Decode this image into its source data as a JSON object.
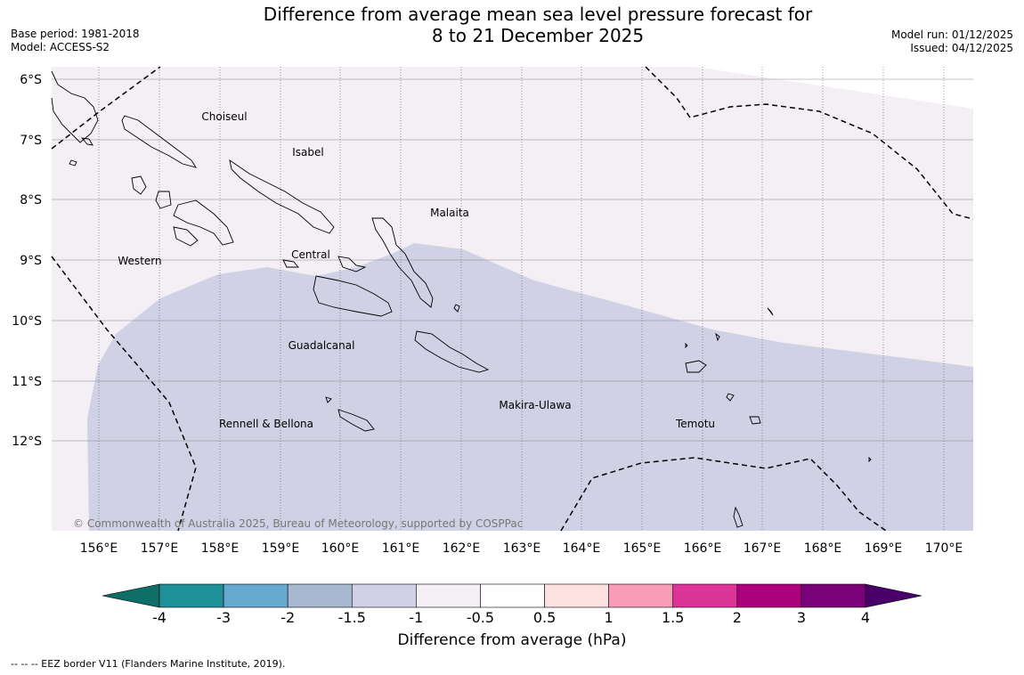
{
  "header": {
    "title_line1": "Difference from average mean sea level pressure forecast for",
    "title_line2": "8 to 21 December 2025",
    "base_period": "Base period: 1981-2018",
    "model": "Model: ACCESS-S2",
    "model_run": "Model run: 01/12/2025",
    "issued": "Issued: 04/12/2025"
  },
  "map": {
    "lat_labels": [
      "6°S",
      "7°S",
      "8°S",
      "9°S",
      "10°S",
      "11°S",
      "12°S"
    ],
    "lon_labels": [
      "156°E",
      "157°E",
      "158°E",
      "159°E",
      "160°E",
      "161°E",
      "162°E",
      "163°E",
      "164°E",
      "165°E",
      "166°E",
      "167°E",
      "168°E",
      "169°E",
      "170°E"
    ],
    "regions": {
      "choiseul": "Choiseul",
      "isabel": "Isabel",
      "malaita": "Malaita",
      "western": "Western",
      "central": "Central",
      "guadalcanal": "Guadalcanal",
      "makira_ulawa": "Makira-Ulawa",
      "temotu": "Temotu",
      "rennell_bellona": "Rennell & Bellona"
    },
    "copyright": "© Commonwealth of Australia 2025, Bureau of Meteorology, supported by COSPPac",
    "anomaly_fill_colors": {
      "between_-1.5_and_-1": "#d0d1e5",
      "between_-1_and_-0.5": "#f4eef5"
    }
  },
  "colorbar": {
    "ticks": [
      "-4",
      "-3",
      "-2",
      "-1.5",
      "-1",
      "-0.5",
      "0.5",
      "1",
      "1.5",
      "2",
      "3",
      "4"
    ],
    "colors": [
      "#0e6f68",
      "#1e9198",
      "#67a9cf",
      "#a9b8d1",
      "#d0d1e5",
      "#f4eef5",
      "#ffffff",
      "#fde0e0",
      "#f89db9",
      "#dd3497",
      "#ae017e",
      "#7a0177",
      "#49006a"
    ],
    "label": "Difference from average (hPa)"
  },
  "footnote": "--  --  -- EEZ border V11 (Flanders Marine Institute, 2019)."
}
